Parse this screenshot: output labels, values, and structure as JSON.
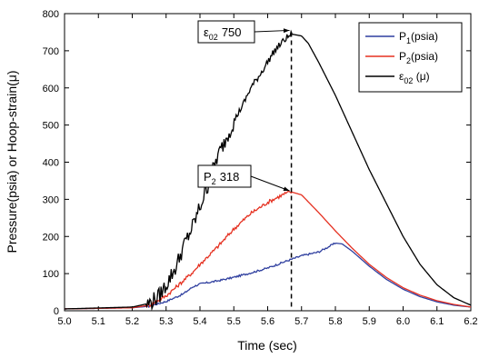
{
  "chart_data": {
    "type": "line",
    "xlabel": "Time (sec)",
    "ylabel": "Pressure(psia) or Hoop-strain(μ)",
    "xlim": [
      5.0,
      6.2
    ],
    "ylim": [
      0,
      800
    ],
    "xticks": [
      "5.0",
      "5.1",
      "5.2",
      "5.3",
      "5.4",
      "5.5",
      "5.6",
      "5.7",
      "5.8",
      "5.9",
      "6.0",
      "6.1",
      "6.2"
    ],
    "yticks": [
      "0",
      "100",
      "200",
      "300",
      "400",
      "500",
      "600",
      "700",
      "800"
    ],
    "grid": false,
    "legend": {
      "position": "top-right",
      "entries": [
        {
          "label": "P",
          "sub": "1",
          "suffix": "(psia)",
          "color": "#2f3f9f"
        },
        {
          "label": "P",
          "sub": "2",
          "suffix": "(psia)",
          "color": "#e53020"
        },
        {
          "label": "ε",
          "sub": "02",
          "suffix": " (μ)",
          "color": "#000000"
        }
      ]
    },
    "series": [
      {
        "name": "P1(psia)",
        "color": "#2f3f9f",
        "x": [
          5.0,
          5.2,
          5.25,
          5.3,
          5.35,
          5.38,
          5.4,
          5.45,
          5.5,
          5.55,
          5.6,
          5.65,
          5.7,
          5.75,
          5.8,
          5.82,
          5.85,
          5.9,
          5.95,
          6.0,
          6.05,
          6.1,
          6.15,
          6.2
        ],
        "y": [
          5,
          8,
          12,
          25,
          45,
          65,
          72,
          80,
          90,
          102,
          115,
          132,
          148,
          158,
          182,
          180,
          160,
          120,
          85,
          58,
          38,
          24,
          15,
          10
        ]
      },
      {
        "name": "P2(psia)",
        "color": "#e53020",
        "x": [
          5.0,
          5.2,
          5.25,
          5.3,
          5.35,
          5.38,
          5.4,
          5.45,
          5.5,
          5.55,
          5.6,
          5.65,
          5.67,
          5.7,
          5.75,
          5.8,
          5.85,
          5.9,
          5.95,
          6.0,
          6.05,
          6.1,
          6.15,
          6.2
        ],
        "y": [
          5,
          8,
          15,
          40,
          80,
          105,
          125,
          170,
          220,
          262,
          292,
          315,
          320,
          312,
          265,
          215,
          168,
          125,
          90,
          62,
          42,
          27,
          17,
          10
        ]
      },
      {
        "name": "ε02(μ)",
        "color": "#000000",
        "x": [
          5.0,
          5.2,
          5.25,
          5.28,
          5.3,
          5.33,
          5.35,
          5.38,
          5.4,
          5.42,
          5.45,
          5.48,
          5.5,
          5.53,
          5.55,
          5.58,
          5.6,
          5.62,
          5.65,
          5.67,
          5.7,
          5.72,
          5.75,
          5.8,
          5.85,
          5.9,
          5.95,
          6.0,
          6.05,
          6.1,
          6.15,
          6.2
        ],
        "y": [
          5,
          10,
          20,
          40,
          70,
          120,
          170,
          230,
          280,
          330,
          410,
          470,
          510,
          560,
          600,
          640,
          670,
          700,
          730,
          745,
          740,
          720,
          670,
          580,
          480,
          380,
          290,
          200,
          125,
          70,
          35,
          15
        ]
      }
    ],
    "annotations": [
      {
        "label": "ε",
        "sub": "02",
        "value": "750",
        "x": 5.67,
        "y": 750
      },
      {
        "label": "P",
        "sub": "2",
        "value": "318",
        "x": 5.67,
        "y": 318
      }
    ],
    "vline_x": 5.67
  }
}
